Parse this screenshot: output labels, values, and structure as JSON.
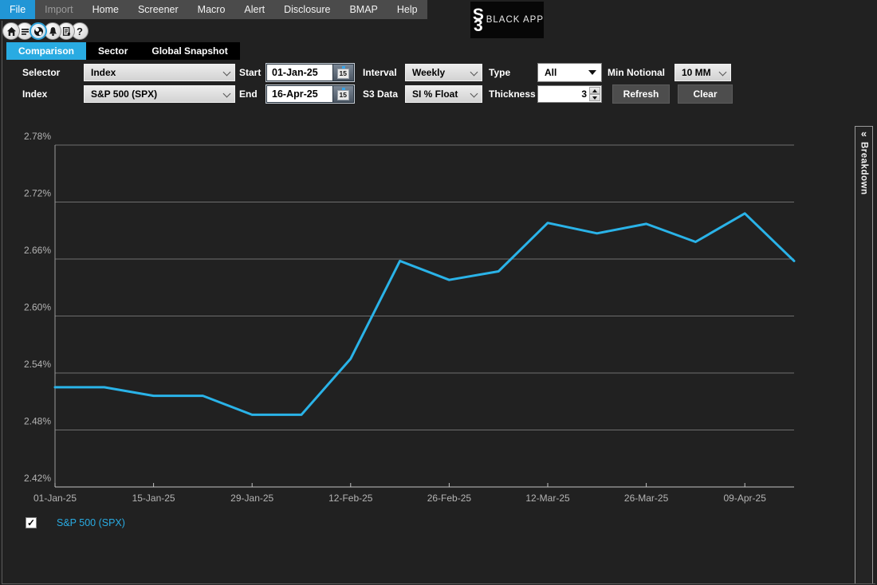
{
  "colors": {
    "accent_blue": "#29abe2",
    "menu_active_blue": "#2196d6",
    "line_blue": "#2ab3e8",
    "background": "#212121",
    "menubar_gray": "#4b4b4b"
  },
  "menu": {
    "items": [
      {
        "label": "File",
        "state": "active"
      },
      {
        "label": "Import",
        "state": "disabled"
      },
      {
        "label": "Home",
        "state": "normal"
      },
      {
        "label": "Screener",
        "state": "normal"
      },
      {
        "label": "Macro",
        "state": "normal"
      },
      {
        "label": "Alert",
        "state": "normal"
      },
      {
        "label": "Disclosure",
        "state": "normal"
      },
      {
        "label": "BMAP",
        "state": "normal"
      },
      {
        "label": "Help",
        "state": "normal"
      }
    ]
  },
  "logo": {
    "mark_top": "S",
    "mark_bottom": "3",
    "text": "BLACK APP"
  },
  "toolbar": {
    "icons": [
      "home-icon",
      "list-icon",
      "globe-icon",
      "bell-icon",
      "report-icon",
      "help-icon"
    ],
    "selected": "globe-icon",
    "help_glyph": "?"
  },
  "tabs": [
    {
      "label": "Comparison",
      "active": true
    },
    {
      "label": "Sector",
      "active": false
    },
    {
      "label": "Global Snapshot",
      "active": false
    }
  ],
  "form": {
    "selector_label": "Selector",
    "selector_value": "Index",
    "index_label": "Index",
    "index_value": "S&P 500 (SPX)",
    "start_label": "Start",
    "start_value": "01-Jan-25",
    "end_label": "End",
    "end_value": "16-Apr-25",
    "calendar_day": "15",
    "interval_label": "Interval",
    "interval_value": "Weekly",
    "s3data_label": "S3 Data",
    "s3data_value": "SI % Float",
    "type_label": "Type",
    "type_value": "All",
    "thickness_label": "Thickness",
    "thickness_value": "3",
    "min_notional_label": "Min Notional",
    "min_notional_value": "10 MM",
    "refresh_label": "Refresh",
    "clear_label": "Clear"
  },
  "chart_data": {
    "type": "line",
    "title": "",
    "xlabel": "",
    "ylabel": "",
    "grid": "horizontal",
    "ylim": [
      2.42,
      2.78
    ],
    "y_ticks": [
      2.78,
      2.72,
      2.66,
      2.6,
      2.54,
      2.48,
      2.42
    ],
    "y_tick_labels": [
      "2.78%",
      "2.72%",
      "2.66%",
      "2.60%",
      "2.54%",
      "2.48%",
      "2.42%"
    ],
    "categories": [
      "01-Jan-25",
      "08-Jan-25",
      "15-Jan-25",
      "22-Jan-25",
      "29-Jan-25",
      "05-Feb-25",
      "12-Feb-25",
      "19-Feb-25",
      "26-Feb-25",
      "05-Mar-25",
      "12-Mar-25",
      "19-Mar-25",
      "26-Mar-25",
      "02-Apr-25",
      "09-Apr-25",
      "16-Apr-25"
    ],
    "x_tick_indices": [
      0,
      2,
      4,
      6,
      8,
      10,
      12,
      14
    ],
    "x_tick_labels": [
      "01-Jan-25",
      "15-Jan-25",
      "29-Jan-25",
      "12-Feb-25",
      "26-Feb-25",
      "12-Mar-25",
      "26-Mar-25",
      "09-Apr-25"
    ],
    "series": [
      {
        "name": "S&P 500 (SPX)",
        "color": "#2ab3e8",
        "thickness": 3,
        "values": [
          2.525,
          2.525,
          2.516,
          2.516,
          2.496,
          2.496,
          2.555,
          2.658,
          2.638,
          2.647,
          2.698,
          2.687,
          2.697,
          2.678,
          2.708,
          2.658
        ]
      }
    ],
    "legend_position": "bottom-left"
  },
  "legend": {
    "items": [
      {
        "label": "S&P 500 (SPX)",
        "checked": true,
        "check_glyph": "✓",
        "color": "#29abe2"
      }
    ]
  },
  "breakdown": {
    "collapse_glyph": "«",
    "label": "Breakdown"
  }
}
